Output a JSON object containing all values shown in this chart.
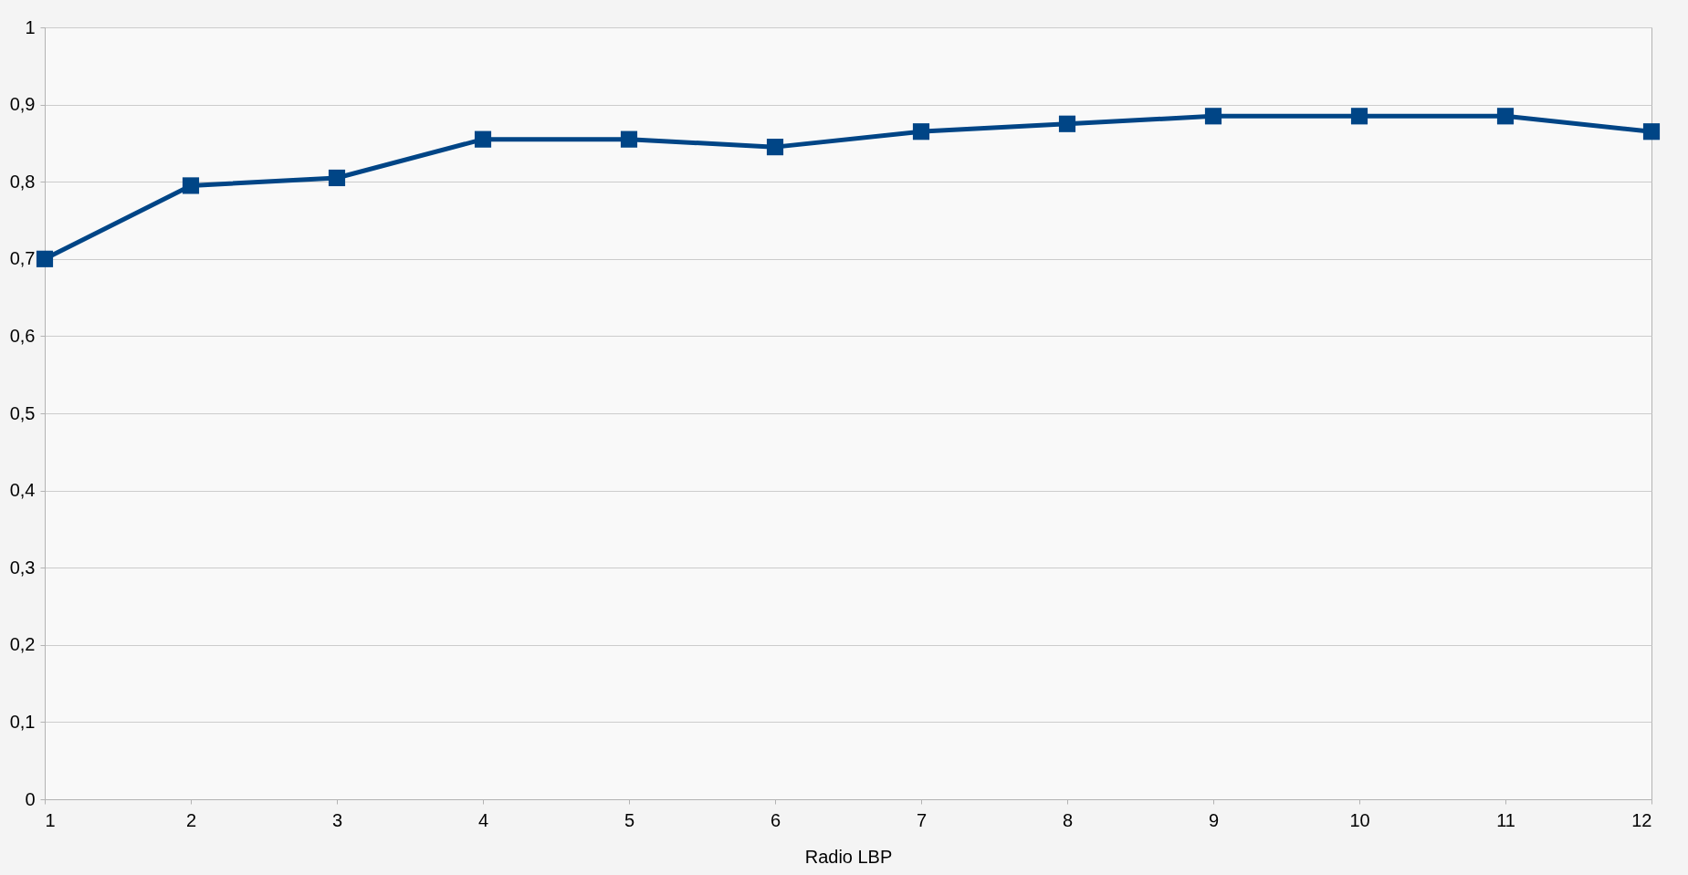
{
  "chart_data": {
    "type": "line",
    "xlabel": "Radio LBP",
    "x": [
      1,
      2,
      3,
      4,
      5,
      6,
      7,
      8,
      9,
      10,
      11,
      12
    ],
    "series": [
      {
        "color": "#004586",
        "values": [
          0.7,
          0.795,
          0.805,
          0.855,
          0.855,
          0.845,
          0.865,
          0.875,
          0.885,
          0.885,
          0.885,
          0.865
        ]
      }
    ],
    "xlim": [
      1,
      12
    ],
    "xticks": [
      1,
      2,
      3,
      4,
      5,
      6,
      7,
      8,
      9,
      10,
      11,
      12
    ],
    "ylim": [
      0,
      1
    ],
    "yticks": [
      0,
      {
        "value": 0.1,
        "label": "0,1"
      },
      {
        "value": 0.2,
        "label": "0,2"
      },
      {
        "value": 0.3,
        "label": "0,3"
      },
      {
        "value": 0.4,
        "label": "0,4"
      },
      {
        "value": 0.5,
        "label": "0,5"
      },
      {
        "value": 0.6,
        "label": "0,6"
      },
      {
        "value": 0.7,
        "label": "0,7"
      },
      {
        "value": 0.8,
        "label": "0,8"
      },
      {
        "value": 0.9,
        "label": "0,9"
      },
      1
    ],
    "grid": "y",
    "marker": "square",
    "line_style": "solid"
  }
}
